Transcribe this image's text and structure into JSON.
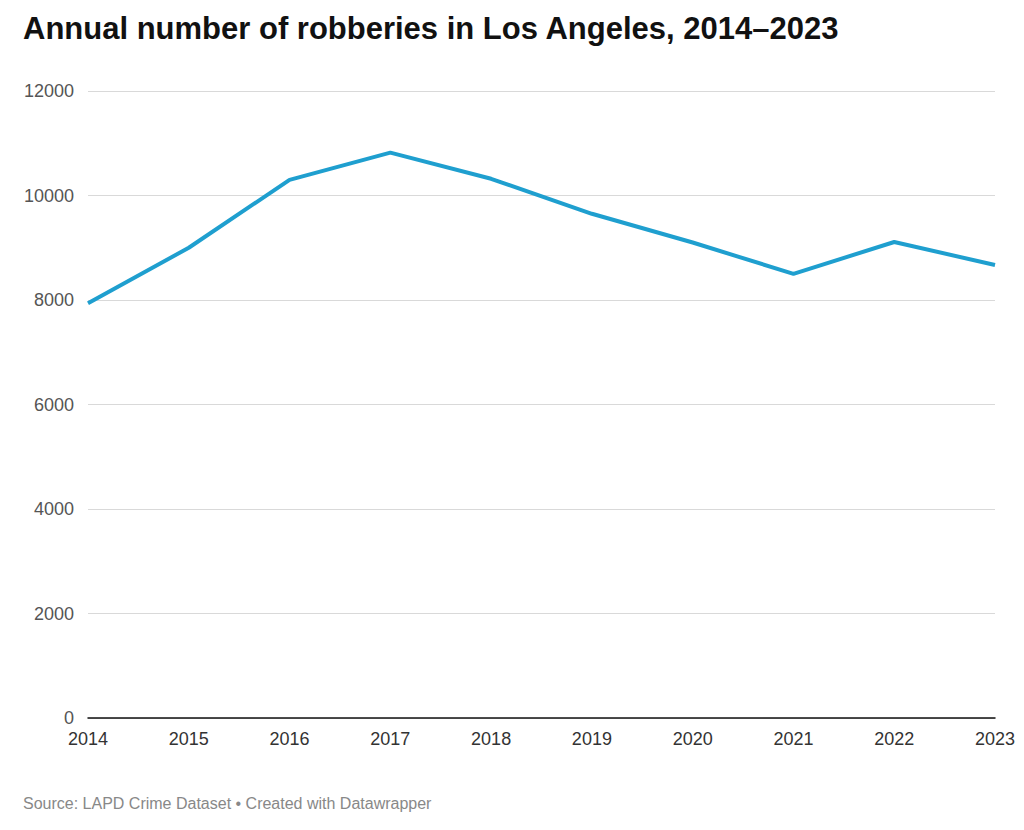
{
  "chart_data": {
    "type": "line",
    "title": "Annual number of robberies in Los Angeles, 2014–2023",
    "source": "Source: LAPD Crime Dataset • Created with Datawrapper",
    "categories": [
      "2014",
      "2015",
      "2016",
      "2017",
      "2018",
      "2019",
      "2020",
      "2021",
      "2022",
      "2023"
    ],
    "values": [
      7940,
      9000,
      10300,
      10820,
      10320,
      9650,
      9100,
      8500,
      9110,
      8670
    ],
    "color": "#1f9fcf",
    "ylim": [
      0,
      12000
    ],
    "yticks": [
      0,
      2000,
      4000,
      6000,
      8000,
      10000,
      12000
    ],
    "grid": true
  }
}
